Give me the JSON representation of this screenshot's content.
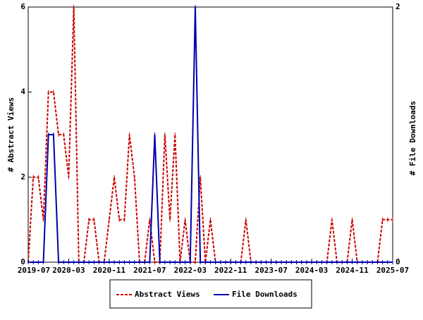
{
  "chart_data": {
    "type": "line",
    "categories": [
      "2019-07",
      null,
      null,
      null,
      null,
      null,
      null,
      null,
      "2020-03",
      null,
      null,
      null,
      null,
      null,
      null,
      null,
      "2020-11",
      null,
      null,
      null,
      null,
      null,
      null,
      null,
      "2021-07",
      null,
      null,
      null,
      null,
      null,
      null,
      null,
      "2022-03",
      null,
      null,
      null,
      null,
      null,
      null,
      null,
      "2022-11",
      null,
      null,
      null,
      null,
      null,
      null,
      null,
      "2023-07",
      null,
      null,
      null,
      null,
      null,
      null,
      null,
      "2024-03",
      null,
      null,
      null,
      null,
      null,
      null,
      null,
      "2024-11",
      null,
      null,
      null,
      null,
      null,
      null,
      null,
      "2025-07"
    ],
    "series": [
      {
        "name": "Abstract Views",
        "color": "#cc0000",
        "axis": "y",
        "values": [
          0,
          2,
          2,
          1,
          4,
          4,
          3,
          3,
          2,
          6,
          0,
          0,
          1,
          1,
          0,
          0,
          1,
          2,
          1,
          1,
          3,
          2,
          0,
          0,
          1,
          0,
          0,
          3,
          1,
          3,
          0,
          1,
          0,
          0,
          2,
          0,
          1,
          0,
          0,
          0,
          0,
          0,
          0,
          1,
          0,
          0,
          0,
          0,
          0,
          0,
          0,
          0,
          0,
          0,
          0,
          0,
          0,
          0,
          0,
          0,
          1,
          0,
          0,
          0,
          1,
          0,
          0,
          0,
          0,
          0,
          1,
          1,
          1
        ]
      },
      {
        "name": "File Downloads",
        "color": "#0000aa",
        "axis": "y2",
        "values": [
          0,
          0,
          0,
          0,
          1,
          1,
          0,
          0,
          0,
          0,
          0,
          0,
          0,
          0,
          0,
          0,
          0,
          0,
          0,
          0,
          0,
          0,
          0,
          0,
          0,
          1,
          0,
          0,
          0,
          0,
          0,
          0,
          0,
          2,
          0,
          0,
          0,
          0,
          0,
          0,
          0,
          0,
          0,
          0,
          0,
          0,
          0,
          0,
          0,
          0,
          0,
          0,
          0,
          0,
          0,
          0,
          0,
          0,
          0,
          0,
          0,
          0,
          0,
          0,
          0,
          0,
          0,
          0,
          0,
          0,
          0,
          0,
          0
        ]
      }
    ],
    "ylabel": "# Abstract Views",
    "y2label": "# File Downloads",
    "ylim": [
      0,
      6
    ],
    "yticks": [
      0,
      2,
      4,
      6
    ],
    "y2lim": [
      0,
      2
    ],
    "y2ticks": [
      0,
      2
    ]
  }
}
